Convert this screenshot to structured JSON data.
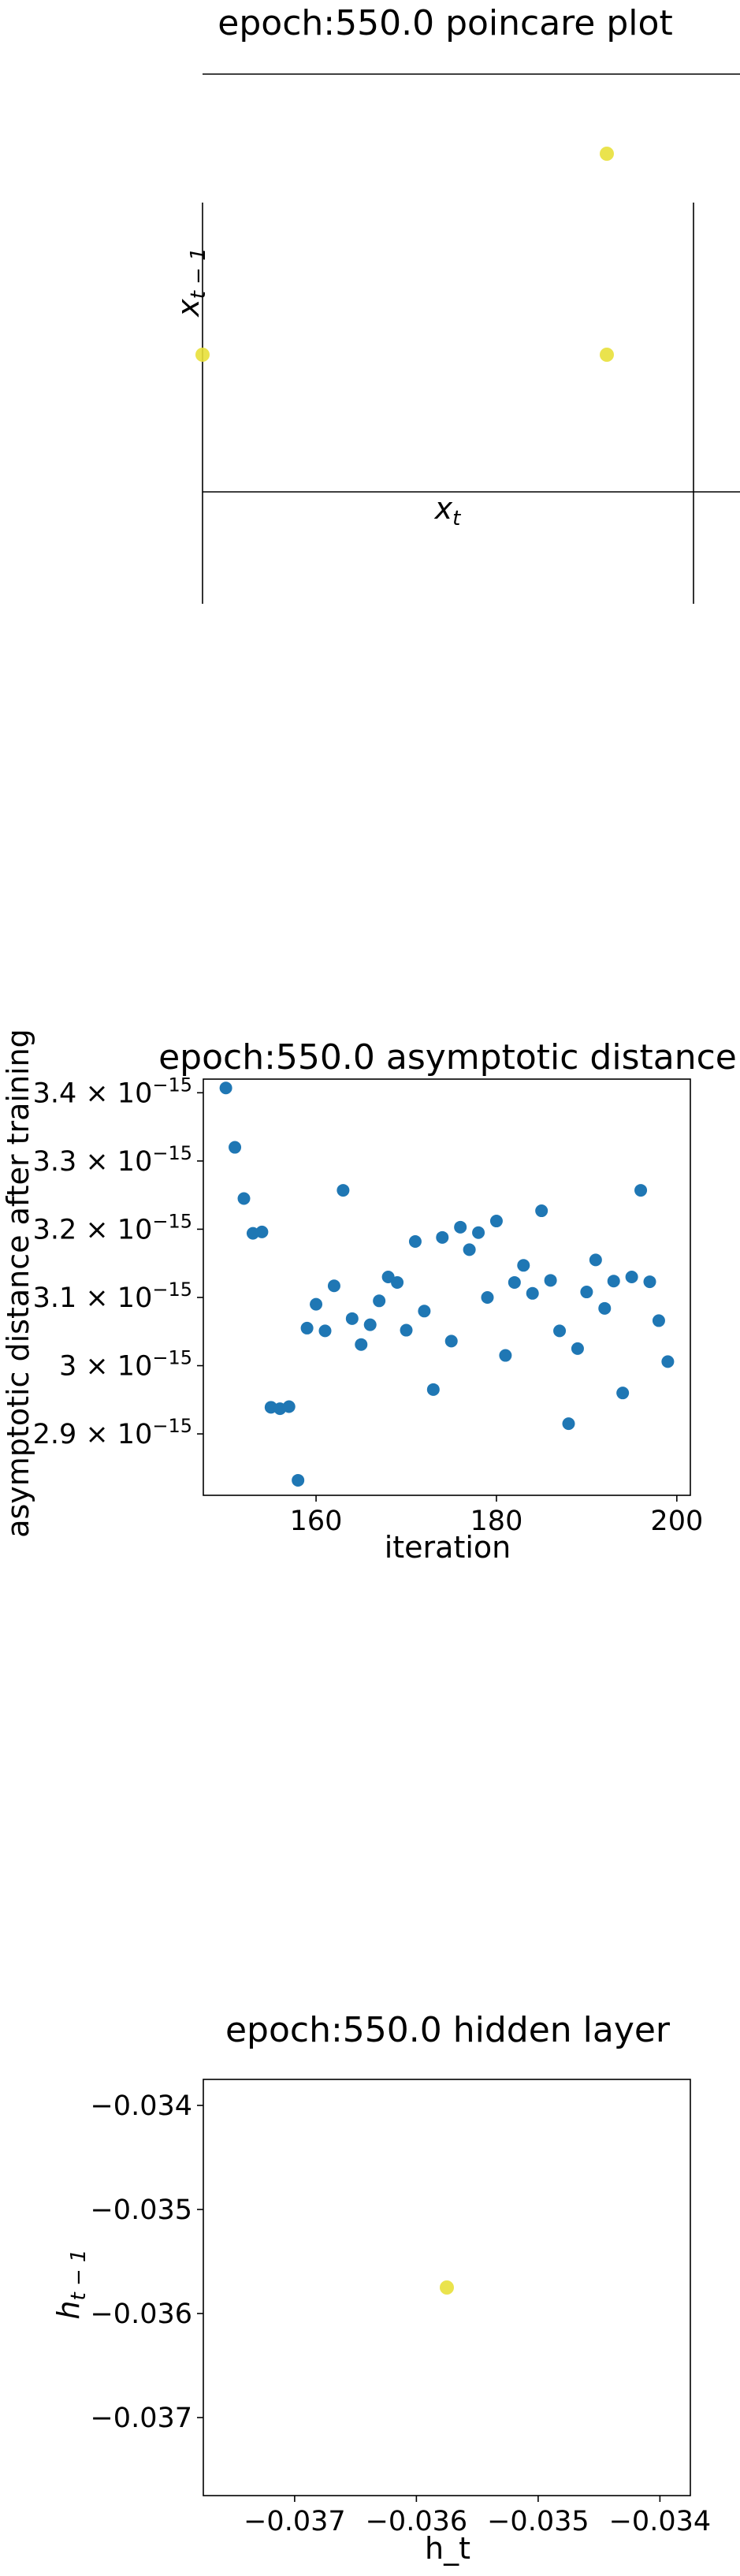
{
  "chart_data": [
    {
      "type": "scatter",
      "title": "epoch:550.0 poincare plot",
      "xlabel": "x_t",
      "ylabel": "x_{t−1}",
      "xlabel_base": "x",
      "xlabel_sub": "t",
      "ylabel_base": "x",
      "ylabel_sub": "t − 1",
      "grid": false,
      "point_color": "#e8e03a",
      "points": [
        {
          "x": 0.0,
          "y": 0.0
        },
        {
          "x": 1.0,
          "y": 0.0
        },
        {
          "x": 1.0,
          "y": 1.0
        }
      ]
    },
    {
      "type": "scatter",
      "title": "epoch:550.0 asymptotic distance",
      "xlabel": "iteration",
      "ylabel": "asymptotic distance after training",
      "xlim": [
        147.5,
        201.5
      ],
      "ylim": [
        2.81,
        3.42
      ],
      "y_scale": 1e-15,
      "x_ticks": [
        160,
        180,
        200
      ],
      "y_ticks": [
        {
          "value": 2.9,
          "mantissa": "2.9"
        },
        {
          "value": 3.0,
          "mantissa": "3"
        },
        {
          "value": 3.1,
          "mantissa": "3.1"
        },
        {
          "value": 3.2,
          "mantissa": "3.2"
        },
        {
          "value": 3.3,
          "mantissa": "3.3"
        },
        {
          "value": 3.4,
          "mantissa": "3.4"
        }
      ],
      "y_tick_suffix_base": "× 10",
      "y_tick_exponent": "−15",
      "grid": false,
      "point_color": "#1f77b4",
      "x": [
        150,
        151,
        152,
        153,
        154,
        155,
        156,
        157,
        158,
        159,
        160,
        161,
        162,
        163,
        164,
        165,
        166,
        167,
        168,
        169,
        170,
        171,
        172,
        173,
        174,
        175,
        176,
        177,
        178,
        179,
        180,
        181,
        182,
        183,
        184,
        185,
        186,
        187,
        188,
        189,
        190,
        191,
        192,
        193,
        194,
        195,
        196,
        197,
        198,
        199
      ],
      "y": [
        3.407,
        3.32,
        3.245,
        3.194,
        3.196,
        2.939,
        2.937,
        2.94,
        2.832,
        3.055,
        3.09,
        3.051,
        3.117,
        3.257,
        3.069,
        3.031,
        3.06,
        3.095,
        3.13,
        3.122,
        3.052,
        3.182,
        3.08,
        2.965,
        3.188,
        3.036,
        3.203,
        3.17,
        3.195,
        3.1,
        3.212,
        3.015,
        3.122,
        3.147,
        3.106,
        3.227,
        3.125,
        3.051,
        2.915,
        3.025,
        3.108,
        3.155,
        3.084,
        3.124,
        2.96,
        3.13,
        3.257,
        3.123,
        3.066,
        3.006
      ]
    },
    {
      "type": "scatter",
      "title": "epoch:550.0 hidden layer",
      "xlabel": "h_t",
      "ylabel": "h_{t−1}",
      "xlabel_text": "h_t",
      "ylabel_base": "h",
      "ylabel_sub": "t − 1",
      "xlim": [
        -0.03775,
        -0.03375
      ],
      "ylim": [
        -0.03775,
        -0.03375
      ],
      "x_ticks": [
        {
          "value": -0.037,
          "label": "−0.037"
        },
        {
          "value": -0.036,
          "label": "−0.036"
        },
        {
          "value": -0.035,
          "label": "−0.035"
        },
        {
          "value": -0.034,
          "label": "−0.034"
        }
      ],
      "y_ticks": [
        {
          "value": -0.037,
          "label": "−0.037"
        },
        {
          "value": -0.036,
          "label": "−0.036"
        },
        {
          "value": -0.035,
          "label": "−0.035"
        },
        {
          "value": -0.034,
          "label": "−0.034"
        }
      ],
      "grid": false,
      "point_color": "#e8e03a",
      "points": [
        {
          "x": -0.03575,
          "y": -0.03575
        }
      ]
    }
  ]
}
